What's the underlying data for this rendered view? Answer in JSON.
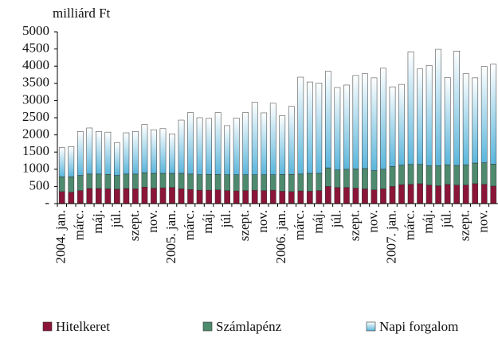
{
  "chart_data": {
    "type": "stacked-bar",
    "ylabel": "milliárd Ft",
    "categories": [
      "2004. jan.",
      null,
      "márc.",
      null,
      "máj.",
      null,
      "júl.",
      null,
      "szept.",
      null,
      "nov.",
      null,
      "2005. jan.",
      null,
      "márc.",
      null,
      "máj.",
      null,
      "júl.",
      null,
      "szept.",
      null,
      "nov.",
      null,
      "2006. jan.",
      null,
      "márc.",
      null,
      "máj.",
      null,
      "júl.",
      null,
      "szept.",
      null,
      "nov.",
      null,
      "2007. jan.",
      null,
      "márc.",
      null,
      "máj.",
      null,
      "júl.",
      null,
      "szept.",
      null,
      "nov.",
      null
    ],
    "series": [
      {
        "name": "Hitelkeret",
        "color": "#8b1538",
        "values": [
          350,
          330,
          380,
          440,
          440,
          430,
          420,
          440,
          430,
          480,
          450,
          460,
          470,
          430,
          410,
          390,
          390,
          400,
          380,
          370,
          380,
          390,
          380,
          390,
          360,
          350,
          370,
          360,
          380,
          500,
          470,
          470,
          450,
          430,
          400,
          430,
          500,
          550,
          560,
          580,
          540,
          520,
          560,
          540,
          540,
          580,
          560,
          510
        ]
      },
      {
        "name": "Számlapénz",
        "color": "#4e8a6e",
        "values": [
          430,
          450,
          440,
          420,
          420,
          420,
          400,
          420,
          430,
          420,
          430,
          420,
          410,
          450,
          450,
          450,
          460,
          450,
          460,
          470,
          460,
          450,
          460,
          450,
          490,
          500,
          490,
          520,
          500,
          540,
          510,
          530,
          560,
          590,
          560,
          570,
          580,
          570,
          580,
          560,
          560,
          580,
          570,
          570,
          590,
          600,
          630,
          640
        ]
      },
      {
        "name": "Napi forgalom",
        "color": "#5ab6dc",
        "values": [
          850,
          880,
          1280,
          1340,
          1240,
          1230,
          950,
          1200,
          1240,
          1400,
          1270,
          1300,
          1150,
          1550,
          1790,
          1660,
          1630,
          1800,
          1430,
          1650,
          1810,
          2110,
          1800,
          2080,
          1710,
          1980,
          2820,
          2660,
          2630,
          2810,
          2400,
          2450,
          2720,
          2760,
          2700,
          2940,
          2320,
          2350,
          3280,
          2780,
          2920,
          3390,
          2540,
          3330,
          2650,
          2480,
          2800,
          2910
        ]
      }
    ],
    "ylim": [
      0,
      5000
    ],
    "yticks": [
      {
        "value": 0,
        "label": "-"
      },
      500,
      1000,
      1500,
      2000,
      2500,
      3000,
      3500,
      4000,
      4500,
      5000
    ]
  }
}
